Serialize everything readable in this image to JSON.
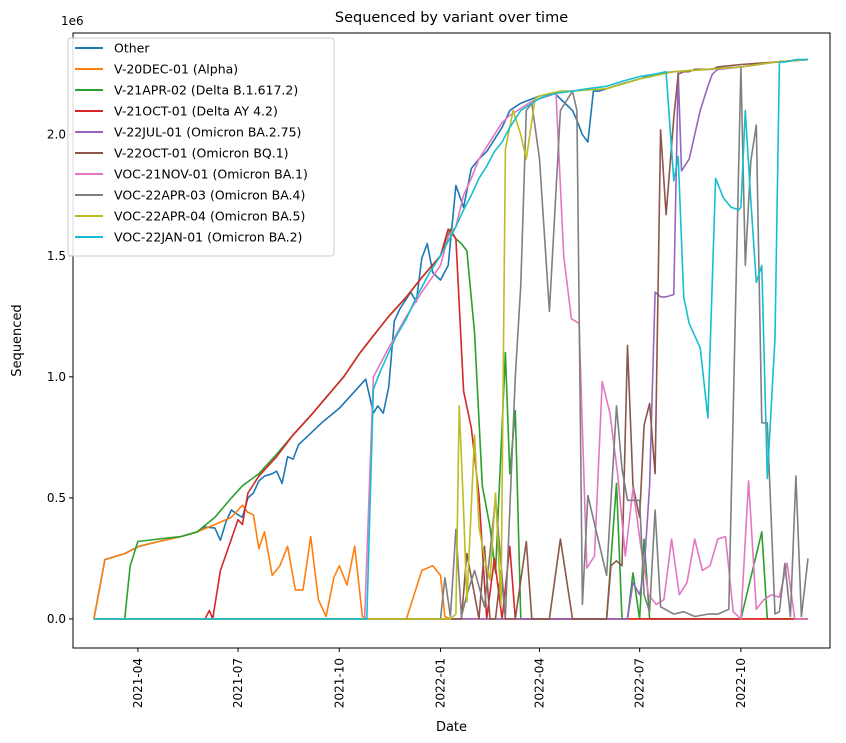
{
  "chart_data": {
    "type": "line",
    "title": "Sequenced by variant over time",
    "xlabel": "Date",
    "ylabel": "Sequenced",
    "y_scale_label": "1e6",
    "x_ticks": [
      "2021-04",
      "2021-07",
      "2021-10",
      "2022-01",
      "2022-04",
      "2022-07",
      "2022-10"
    ],
    "y_ticks": [
      "0.0",
      "0.5",
      "1.0",
      "1.5",
      "2.0"
    ],
    "ylim": [
      -0.12,
      2.42
    ],
    "xlim": [
      "2021-02-01",
      "2022-12-21"
    ],
    "legend_position": "upper left",
    "grid": false,
    "series": [
      {
        "name": "Other",
        "color": "#1f77b4",
        "x": [
          "2021-02-20",
          "2021-03-02",
          "2021-03-20",
          "2021-04-02",
          "2021-04-20",
          "2021-05-10",
          "2021-05-25",
          "2021-06-01",
          "2021-06-10",
          "2021-06-15",
          "2021-06-20",
          "2021-06-25",
          "2021-07-01",
          "2021-07-05",
          "2021-07-10",
          "2021-07-15",
          "2021-07-20",
          "2021-07-25",
          "2021-08-01",
          "2021-08-05",
          "2021-08-10",
          "2021-08-15",
          "2021-08-20",
          "2021-08-25",
          "2021-09-01",
          "2021-09-15",
          "2021-10-01",
          "2021-10-15",
          "2021-10-25",
          "2021-11-01",
          "2021-11-05",
          "2021-11-10",
          "2021-11-15",
          "2021-11-20",
          "2021-11-25",
          "2021-12-05",
          "2021-12-10",
          "2021-12-15",
          "2021-12-20",
          "2021-12-25",
          "2022-01-01",
          "2022-01-08",
          "2022-01-15",
          "2022-01-22",
          "2022-01-29",
          "2022-02-05",
          "2022-02-12",
          "2022-02-19",
          "2022-02-26",
          "2022-03-05",
          "2022-03-15",
          "2022-04-01",
          "2022-04-15",
          "2022-05-01",
          "2022-05-05",
          "2022-05-10",
          "2022-05-15",
          "2022-05-20",
          "2022-05-25",
          "2022-06-01",
          "2022-06-15",
          "2022-07-01",
          "2022-07-15",
          "2022-08-01",
          "2022-09-01",
          "2022-10-01",
          "2022-11-01",
          "2022-12-01"
        ],
        "values": [
          0,
          0.245,
          0.27,
          0.3,
          0.32,
          0.34,
          0.36,
          0.38,
          0.375,
          0.325,
          0.4,
          0.45,
          0.43,
          0.42,
          0.5,
          0.52,
          0.57,
          0.59,
          0.6,
          0.61,
          0.56,
          0.67,
          0.66,
          0.72,
          0.75,
          0.81,
          0.87,
          0.94,
          0.99,
          0.85,
          0.88,
          0.85,
          0.96,
          1.23,
          1.28,
          1.35,
          1.31,
          1.49,
          1.55,
          1.43,
          1.4,
          1.46,
          1.79,
          1.7,
          1.86,
          1.9,
          1.93,
          1.98,
          2.03,
          2.1,
          2.13,
          2.16,
          2.17,
          2.1,
          2.06,
          2.0,
          1.97,
          2.18,
          2.18,
          2.19,
          2.21,
          2.23,
          2.25,
          2.26,
          2.27,
          2.28,
          2.3,
          2.31
        ]
      },
      {
        "name": "V-20DEC-01 (Alpha)",
        "color": "#ff7f0e",
        "x": [
          "2021-02-20",
          "2021-03-02",
          "2021-03-20",
          "2021-04-02",
          "2021-04-20",
          "2021-05-10",
          "2021-05-25",
          "2021-06-10",
          "2021-06-25",
          "2021-07-01",
          "2021-07-05",
          "2021-07-10",
          "2021-07-15",
          "2021-07-20",
          "2021-07-25",
          "2021-08-01",
          "2021-08-08",
          "2021-08-15",
          "2021-08-22",
          "2021-08-29",
          "2021-09-05",
          "2021-09-12",
          "2021-09-19",
          "2021-09-26",
          "2021-10-01",
          "2021-10-08",
          "2021-10-15",
          "2021-10-22",
          "2021-10-26",
          "2021-11-01",
          "2021-12-01",
          "2021-12-15",
          "2021-12-25",
          "2022-01-01",
          "2022-01-05",
          "2022-01-10",
          "2022-01-12",
          "2022-12-01"
        ],
        "values": [
          0,
          0.245,
          0.27,
          0.3,
          0.32,
          0.34,
          0.36,
          0.39,
          0.42,
          0.45,
          0.47,
          0.44,
          0.43,
          0.29,
          0.36,
          0.18,
          0.22,
          0.3,
          0.12,
          0.12,
          0.34,
          0.08,
          0.01,
          0.17,
          0.22,
          0.14,
          0.3,
          0.01,
          0,
          0,
          0,
          0.2,
          0.22,
          0.18,
          0.01,
          0,
          0,
          0
        ]
      },
      {
        "name": "V-21APR-02 (Delta B.1.617.2)",
        "color": "#2ca02c",
        "x": [
          "2021-02-20",
          "2021-03-20",
          "2021-03-25",
          "2021-04-01",
          "2021-04-20",
          "2021-05-10",
          "2021-05-25",
          "2021-06-10",
          "2021-06-25",
          "2021-07-05",
          "2021-07-20",
          "2021-08-05",
          "2021-08-20",
          "2021-09-05",
          "2021-09-20",
          "2021-10-05",
          "2021-10-20",
          "2021-11-01",
          "2021-11-15",
          "2021-12-01",
          "2021-12-15",
          "2022-01-01",
          "2022-01-05",
          "2022-01-10",
          "2022-01-15",
          "2022-01-20",
          "2022-01-25",
          "2022-02-01",
          "2022-02-08",
          "2022-02-15",
          "2022-02-20",
          "2022-03-01",
          "2022-03-05",
          "2022-03-10",
          "2022-03-15",
          "2022-03-20",
          "2022-03-25",
          "2022-04-01",
          "2022-05-01",
          "2022-06-01",
          "2022-06-10",
          "2022-06-15",
          "2022-06-20",
          "2022-06-25",
          "2022-07-01",
          "2022-07-05",
          "2022-07-10",
          "2022-07-15",
          "2022-08-01",
          "2022-09-01",
          "2022-10-01",
          "2022-10-20",
          "2022-10-25",
          "2022-11-01",
          "2022-12-01"
        ],
        "values": [
          0,
          0,
          0.22,
          0.32,
          0.33,
          0.34,
          0.36,
          0.42,
          0.5,
          0.55,
          0.6,
          0.68,
          0.76,
          0.84,
          0.92,
          1.0,
          1.1,
          1.17,
          1.25,
          1.33,
          1.41,
          1.5,
          1.55,
          1.61,
          1.57,
          1.55,
          1.52,
          1.18,
          0.55,
          0.38,
          0.19,
          1.1,
          0.6,
          0.86,
          0,
          0,
          0,
          0,
          0,
          0,
          0.56,
          0,
          0,
          0.19,
          0,
          0.33,
          0,
          0,
          0,
          0,
          0,
          0.36,
          0,
          0,
          0
        ]
      },
      {
        "name": "V-21OCT-01 (Delta AY 4.2)",
        "color": "#d62728",
        "x": [
          "2021-02-20",
          "2021-06-01",
          "2021-06-05",
          "2021-06-08",
          "2021-06-15",
          "2021-06-25",
          "2021-07-01",
          "2021-07-05",
          "2021-07-10",
          "2021-07-20",
          "2021-08-05",
          "2021-08-20",
          "2021-09-05",
          "2021-09-20",
          "2021-10-05",
          "2021-10-20",
          "2021-11-01",
          "2021-11-15",
          "2021-12-01",
          "2021-12-15",
          "2022-01-01",
          "2022-01-08",
          "2022-01-15",
          "2022-01-22",
          "2022-01-29",
          "2022-02-05",
          "2022-02-12",
          "2022-02-19",
          "2022-02-26",
          "2022-03-05",
          "2022-03-10",
          "2022-03-15",
          "2022-03-20",
          "2022-04-01",
          "2022-12-01"
        ],
        "values": [
          0,
          0,
          0.035,
          0,
          0.2,
          0.33,
          0.41,
          0.39,
          0.52,
          0.59,
          0.67,
          0.76,
          0.84,
          0.92,
          1.0,
          1.1,
          1.17,
          1.25,
          1.33,
          1.41,
          1.5,
          1.61,
          1.57,
          0.94,
          0.79,
          0.51,
          0,
          0.25,
          0,
          0.3,
          0,
          0,
          0,
          0,
          0
        ]
      },
      {
        "name": "V-22JUL-01 (Omicron BA.2.75)",
        "color": "#9467bd",
        "x": [
          "2021-02-20",
          "2022-01-01",
          "2022-06-20",
          "2022-06-25",
          "2022-07-01",
          "2022-07-05",
          "2022-07-10",
          "2022-07-15",
          "2022-07-20",
          "2022-07-25",
          "2022-08-01",
          "2022-08-05",
          "2022-08-08",
          "2022-08-15",
          "2022-08-20",
          "2022-08-25",
          "2022-09-01",
          "2022-09-05",
          "2022-09-10",
          "2022-10-01",
          "2022-11-01",
          "2022-12-01"
        ],
        "values": [
          0,
          0,
          0,
          0.15,
          0.1,
          0.2,
          0.55,
          1.35,
          1.33,
          1.33,
          1.34,
          2.26,
          1.85,
          1.9,
          2.0,
          2.1,
          2.2,
          2.25,
          2.27,
          2.28,
          2.3,
          2.31
        ]
      },
      {
        "name": "V-22OCT-01 (Omicron BQ.1)",
        "color": "#8c564b",
        "x": [
          "2021-02-20",
          "2022-01-01",
          "2022-01-20",
          "2022-01-25",
          "2022-02-05",
          "2022-02-10",
          "2022-02-15",
          "2022-02-20",
          "2022-02-25",
          "2022-03-01",
          "2022-03-10",
          "2022-03-20",
          "2022-03-25",
          "2022-04-01",
          "2022-04-10",
          "2022-04-20",
          "2022-05-01",
          "2022-05-10",
          "2022-05-20",
          "2022-06-01",
          "2022-06-05",
          "2022-06-10",
          "2022-06-15",
          "2022-06-20",
          "2022-06-25",
          "2022-07-01",
          "2022-07-05",
          "2022-07-10",
          "2022-07-15",
          "2022-07-20",
          "2022-07-25",
          "2022-08-01",
          "2022-08-05",
          "2022-08-10",
          "2022-08-15",
          "2022-08-20",
          "2022-08-25",
          "2022-09-01",
          "2022-09-05",
          "2022-09-10",
          "2022-10-01",
          "2022-11-01",
          "2022-12-01"
        ],
        "values": [
          0,
          0,
          0,
          0.27,
          0,
          0.3,
          0,
          0,
          0.2,
          0,
          0,
          0.32,
          0,
          0,
          0,
          0.33,
          0,
          0,
          0,
          0,
          0.22,
          0.24,
          0.22,
          1.13,
          0.55,
          0.42,
          0.8,
          0.89,
          0.6,
          2.02,
          1.67,
          2.07,
          2.25,
          2.26,
          2.26,
          2.27,
          2.27,
          2.27,
          2.27,
          2.28,
          2.29,
          2.3,
          2.31
        ]
      },
      {
        "name": "VOC-21NOV-01 (Omicron BA.1)",
        "color": "#e377c2",
        "x": [
          "2021-02-20",
          "2021-10-24",
          "2021-11-01",
          "2021-11-15",
          "2021-12-01",
          "2021-12-15",
          "2022-01-01",
          "2022-01-08",
          "2022-01-15",
          "2022-01-22",
          "2022-01-29",
          "2022-02-05",
          "2022-02-12",
          "2022-02-19",
          "2022-02-26",
          "2022-03-05",
          "2022-03-12",
          "2022-03-19",
          "2022-03-26",
          "2022-04-02",
          "2022-04-09",
          "2022-04-16",
          "2022-04-23",
          "2022-04-30",
          "2022-05-07",
          "2022-05-14",
          "2022-05-21",
          "2022-05-28",
          "2022-06-04",
          "2022-06-11",
          "2022-06-18",
          "2022-06-25",
          "2022-07-02",
          "2022-07-09",
          "2022-07-16",
          "2022-07-23",
          "2022-07-30",
          "2022-08-06",
          "2022-08-13",
          "2022-08-20",
          "2022-08-27",
          "2022-09-03",
          "2022-09-10",
          "2022-09-17",
          "2022-09-24",
          "2022-10-01",
          "2022-10-08",
          "2022-10-15",
          "2022-10-22",
          "2022-10-29",
          "2022-11-05",
          "2022-11-12",
          "2022-11-19",
          "2022-11-26",
          "2022-12-01"
        ],
        "values": [
          0,
          0,
          1.0,
          1.12,
          1.25,
          1.35,
          1.46,
          1.58,
          1.62,
          1.75,
          1.82,
          1.9,
          1.95,
          2.0,
          2.05,
          2.08,
          2.1,
          2.12,
          2.14,
          2.15,
          2.16,
          2.17,
          1.5,
          1.24,
          1.22,
          0.21,
          0.26,
          0.98,
          0.85,
          0.6,
          0.26,
          0.54,
          0.3,
          0.1,
          0.06,
          0.08,
          0.33,
          0.1,
          0.15,
          0.33,
          0.2,
          0.22,
          0.33,
          0.34,
          0.03,
          0,
          0.57,
          0.04,
          0.08,
          0.1,
          0.09,
          0.23,
          0,
          0,
          0
        ]
      },
      {
        "name": "VOC-22APR-03 (Omicron BA.4)",
        "color": "#7f7f7f",
        "x": [
          "2021-02-20",
          "2022-01-01",
          "2022-01-05",
          "2022-01-10",
          "2022-01-15",
          "2022-01-20",
          "2022-01-25",
          "2022-02-01",
          "2022-02-10",
          "2022-02-20",
          "2022-03-01",
          "2022-03-10",
          "2022-03-15",
          "2022-03-20",
          "2022-03-25",
          "2022-04-01",
          "2022-04-10",
          "2022-04-20",
          "2022-05-01",
          "2022-05-05",
          "2022-05-10",
          "2022-05-15",
          "2022-06-01",
          "2022-06-10",
          "2022-06-15",
          "2022-06-20",
          "2022-07-01",
          "2022-07-05",
          "2022-07-10",
          "2022-07-15",
          "2022-07-20",
          "2022-08-01",
          "2022-08-10",
          "2022-08-20",
          "2022-09-01",
          "2022-09-10",
          "2022-09-20",
          "2022-10-01",
          "2022-10-05",
          "2022-10-10",
          "2022-10-15",
          "2022-10-20",
          "2022-10-25",
          "2022-11-01",
          "2022-11-05",
          "2022-11-10",
          "2022-11-15",
          "2022-11-20",
          "2022-11-25",
          "2022-12-01"
        ],
        "values": [
          0,
          0,
          0.17,
          0.01,
          0.37,
          0.01,
          0.1,
          0.2,
          0.05,
          0.5,
          0.01,
          1.0,
          1.38,
          2.1,
          2.13,
          1.9,
          1.27,
          2.1,
          2.18,
          2.1,
          0.06,
          0.51,
          0.18,
          0.88,
          0.62,
          0.49,
          0.49,
          0.1,
          0.03,
          0.45,
          0.05,
          0.02,
          0.03,
          0.01,
          0.02,
          0.02,
          0.04,
          2.28,
          1.46,
          1.89,
          2.04,
          0.81,
          0.81,
          0.02,
          0.03,
          0.23,
          0.01,
          0.59,
          0.01,
          0.25
        ]
      },
      {
        "name": "VOC-22APR-04 (Omicron BA.5)",
        "color": "#bcbd22",
        "x": [
          "2021-02-20",
          "2021-10-24",
          "2021-11-01",
          "2022-01-01",
          "2022-01-10",
          "2022-01-15",
          "2022-01-18",
          "2022-01-22",
          "2022-01-25",
          "2022-02-01",
          "2022-02-05",
          "2022-02-10",
          "2022-02-15",
          "2022-02-20",
          "2022-02-25",
          "2022-03-01",
          "2022-03-08",
          "2022-03-15",
          "2022-03-20",
          "2022-03-28",
          "2022-04-01",
          "2022-04-10",
          "2022-04-20",
          "2022-05-01",
          "2022-06-01",
          "2022-07-01",
          "2022-08-01",
          "2022-09-01",
          "2022-10-01",
          "2022-11-01",
          "2022-12-01"
        ],
        "values": [
          0,
          0,
          0,
          0,
          0,
          0.02,
          0.88,
          0.45,
          0.07,
          0.76,
          0.38,
          0.25,
          0.16,
          0.52,
          0.06,
          1.94,
          2.1,
          2.0,
          1.9,
          2.15,
          2.16,
          2.17,
          2.18,
          2.18,
          2.19,
          2.23,
          2.26,
          2.27,
          2.28,
          2.3,
          2.31
        ]
      },
      {
        "name": "VOC-22JAN-01 (Omicron BA.2)",
        "color": "#17becf",
        "x": [
          "2021-02-20",
          "2021-10-26",
          "2021-11-01",
          "2021-11-08",
          "2021-11-15",
          "2021-11-22",
          "2021-12-01",
          "2021-12-08",
          "2021-12-15",
          "2021-12-22",
          "2022-01-01",
          "2022-01-08",
          "2022-01-15",
          "2022-01-22",
          "2022-01-29",
          "2022-02-05",
          "2022-02-12",
          "2022-02-19",
          "2022-02-26",
          "2022-03-05",
          "2022-03-15",
          "2022-04-01",
          "2022-04-15",
          "2022-05-01",
          "2022-05-15",
          "2022-06-01",
          "2022-06-15",
          "2022-07-01",
          "2022-07-15",
          "2022-07-25",
          "2022-08-01",
          "2022-08-05",
          "2022-08-10",
          "2022-08-15",
          "2022-08-25",
          "2022-09-01",
          "2022-09-08",
          "2022-09-15",
          "2022-09-22",
          "2022-09-29",
          "2022-10-01",
          "2022-10-05",
          "2022-10-10",
          "2022-10-15",
          "2022-10-20",
          "2022-10-25",
          "2022-11-01",
          "2022-11-05",
          "2022-11-10",
          "2022-11-20",
          "2022-11-25",
          "2022-12-01"
        ],
        "values": [
          0,
          0,
          0.95,
          1.03,
          1.1,
          1.17,
          1.24,
          1.31,
          1.37,
          1.43,
          1.5,
          1.56,
          1.62,
          1.69,
          1.75,
          1.82,
          1.87,
          1.93,
          1.97,
          2.03,
          2.1,
          2.15,
          2.17,
          2.18,
          2.19,
          2.2,
          2.22,
          2.24,
          2.25,
          2.26,
          1.81,
          1.91,
          1.33,
          1.22,
          1.12,
          0.83,
          1.82,
          1.74,
          1.7,
          1.69,
          1.7,
          2.1,
          1.73,
          1.39,
          1.46,
          0.58,
          1.16,
          2.3,
          2.3,
          2.31,
          2.31,
          2.31
        ]
      }
    ]
  }
}
